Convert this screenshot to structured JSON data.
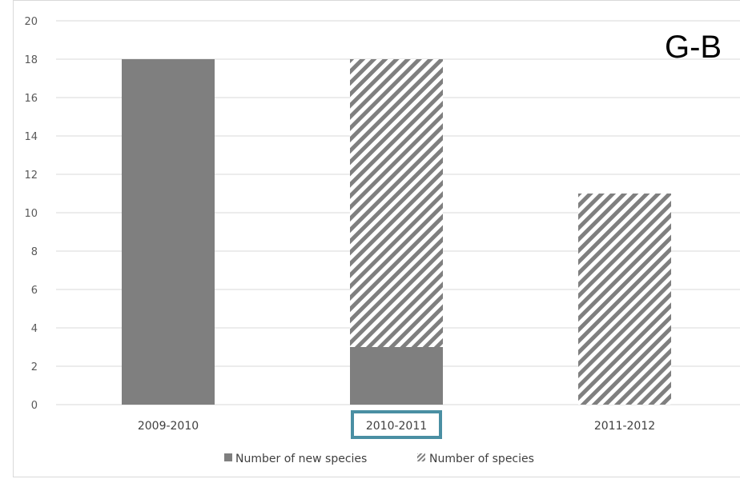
{
  "chart_data": {
    "type": "bar",
    "stacked": true,
    "categories": [
      "2009-2010",
      "2010-2011",
      "2011-2012"
    ],
    "series": [
      {
        "name": "Number of new species",
        "values": [
          18,
          3,
          0
        ],
        "color": "#7f7f7f",
        "pattern": "solid"
      },
      {
        "name": "Number of species",
        "values": [
          0,
          15,
          11
        ],
        "color": "#7f7f7f",
        "pattern": "diagonal-stripes"
      }
    ],
    "yticks": [
      "0",
      "2",
      "4",
      "6",
      "8",
      "10",
      "12",
      "14",
      "16",
      "18",
      "20"
    ],
    "ylim": [
      0,
      20
    ],
    "grid": true,
    "legend": "bottom",
    "highlighted_category": "2010-2011",
    "highlight_color": "#4a8fa3",
    "corner_label": "G-B"
  }
}
